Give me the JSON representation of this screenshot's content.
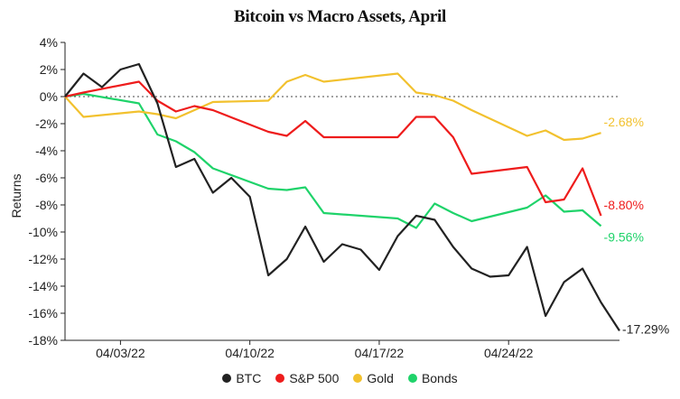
{
  "chart_data": {
    "type": "line",
    "title": "Bitcoin vs Macro Assets, April",
    "ylabel": "Returns",
    "ylim": [
      -18,
      4
    ],
    "yticks": [
      "4%",
      "2%",
      "0%",
      "-2%",
      "-4%",
      "-6%",
      "-8%",
      "-10%",
      "-12%",
      "-14%",
      "-16%",
      "-18%"
    ],
    "ytick_values": [
      4,
      2,
      0,
      -2,
      -4,
      -6,
      -8,
      -10,
      -12,
      -14,
      -16,
      -18
    ],
    "xlim": [
      "2022-03-31",
      "2022-04-30"
    ],
    "xticks": [
      {
        "label": "04/03/22",
        "date": "2022-04-03"
      },
      {
        "label": "04/10/22",
        "date": "2022-04-10"
      },
      {
        "label": "04/17/22",
        "date": "2022-04-17"
      },
      {
        "label": "04/24/22",
        "date": "2022-04-24"
      }
    ],
    "zero_line": "dotted",
    "legend_position": "bottom",
    "series": [
      {
        "name": "BTC",
        "color": "#222222",
        "end_label": "-17.29%",
        "points": [
          [
            "2022-03-31",
            0.0
          ],
          [
            "2022-04-01",
            1.7
          ],
          [
            "2022-04-02",
            0.7
          ],
          [
            "2022-04-03",
            2.0
          ],
          [
            "2022-04-04",
            2.4
          ],
          [
            "2022-04-05",
            -0.5
          ],
          [
            "2022-04-06",
            -5.2
          ],
          [
            "2022-04-07",
            -4.6
          ],
          [
            "2022-04-08",
            -7.1
          ],
          [
            "2022-04-09",
            -6.0
          ],
          [
            "2022-04-10",
            -7.4
          ],
          [
            "2022-04-11",
            -13.2
          ],
          [
            "2022-04-12",
            -12.0
          ],
          [
            "2022-04-13",
            -9.6
          ],
          [
            "2022-04-14",
            -12.2
          ],
          [
            "2022-04-15",
            -10.9
          ],
          [
            "2022-04-16",
            -11.3
          ],
          [
            "2022-04-17",
            -12.8
          ],
          [
            "2022-04-18",
            -10.3
          ],
          [
            "2022-04-19",
            -8.8
          ],
          [
            "2022-04-20",
            -9.1
          ],
          [
            "2022-04-21",
            -11.1
          ],
          [
            "2022-04-22",
            -12.7
          ],
          [
            "2022-04-23",
            -13.3
          ],
          [
            "2022-04-24",
            -13.2
          ],
          [
            "2022-04-25",
            -11.1
          ],
          [
            "2022-04-26",
            -16.2
          ],
          [
            "2022-04-27",
            -13.7
          ],
          [
            "2022-04-28",
            -12.7
          ],
          [
            "2022-04-29",
            -15.2
          ],
          [
            "2022-04-30",
            -17.29
          ]
        ]
      },
      {
        "name": "S&P 500",
        "color": "#ee1c1c",
        "end_label": "-8.80%",
        "points": [
          [
            "2022-03-31",
            0.0
          ],
          [
            "2022-04-01",
            0.3
          ],
          [
            "2022-04-04",
            1.1
          ],
          [
            "2022-04-05",
            -0.3
          ],
          [
            "2022-04-06",
            -1.1
          ],
          [
            "2022-04-07",
            -0.7
          ],
          [
            "2022-04-08",
            -1.0
          ],
          [
            "2022-04-11",
            -2.6
          ],
          [
            "2022-04-12",
            -2.9
          ],
          [
            "2022-04-13",
            -1.8
          ],
          [
            "2022-04-14",
            -3.0
          ],
          [
            "2022-04-18",
            -3.0
          ],
          [
            "2022-04-19",
            -1.5
          ],
          [
            "2022-04-20",
            -1.5
          ],
          [
            "2022-04-21",
            -3.0
          ],
          [
            "2022-04-22",
            -5.7
          ],
          [
            "2022-04-25",
            -5.2
          ],
          [
            "2022-04-26",
            -7.8
          ],
          [
            "2022-04-27",
            -7.6
          ],
          [
            "2022-04-28",
            -5.3
          ],
          [
            "2022-04-29",
            -8.8
          ]
        ]
      },
      {
        "name": "Gold",
        "color": "#f2c12e",
        "end_label": "-2.68%",
        "points": [
          [
            "2022-03-31",
            0.0
          ],
          [
            "2022-04-01",
            -1.5
          ],
          [
            "2022-04-04",
            -1.1
          ],
          [
            "2022-04-05",
            -1.3
          ],
          [
            "2022-04-06",
            -1.6
          ],
          [
            "2022-04-07",
            -1.0
          ],
          [
            "2022-04-08",
            -0.4
          ],
          [
            "2022-04-11",
            -0.3
          ],
          [
            "2022-04-12",
            1.1
          ],
          [
            "2022-04-13",
            1.6
          ],
          [
            "2022-04-14",
            1.1
          ],
          [
            "2022-04-18",
            1.7
          ],
          [
            "2022-04-19",
            0.3
          ],
          [
            "2022-04-20",
            0.1
          ],
          [
            "2022-04-21",
            -0.3
          ],
          [
            "2022-04-22",
            -1.0
          ],
          [
            "2022-04-25",
            -2.9
          ],
          [
            "2022-04-26",
            -2.5
          ],
          [
            "2022-04-27",
            -3.2
          ],
          [
            "2022-04-28",
            -3.1
          ],
          [
            "2022-04-29",
            -2.68
          ]
        ]
      },
      {
        "name": "Bonds",
        "color": "#1fd36a",
        "end_label": "-9.56%",
        "points": [
          [
            "2022-03-31",
            0.0
          ],
          [
            "2022-04-01",
            0.2
          ],
          [
            "2022-04-04",
            -0.5
          ],
          [
            "2022-04-05",
            -2.8
          ],
          [
            "2022-04-06",
            -3.3
          ],
          [
            "2022-04-07",
            -4.1
          ],
          [
            "2022-04-08",
            -5.3
          ],
          [
            "2022-04-11",
            -6.8
          ],
          [
            "2022-04-12",
            -6.9
          ],
          [
            "2022-04-13",
            -6.7
          ],
          [
            "2022-04-14",
            -8.6
          ],
          [
            "2022-04-18",
            -9.0
          ],
          [
            "2022-04-19",
            -9.7
          ],
          [
            "2022-04-20",
            -7.9
          ],
          [
            "2022-04-21",
            -8.6
          ],
          [
            "2022-04-22",
            -9.2
          ],
          [
            "2022-04-25",
            -8.2
          ],
          [
            "2022-04-26",
            -7.3
          ],
          [
            "2022-04-27",
            -8.5
          ],
          [
            "2022-04-28",
            -8.4
          ],
          [
            "2022-04-29",
            -9.56
          ]
        ]
      }
    ]
  }
}
